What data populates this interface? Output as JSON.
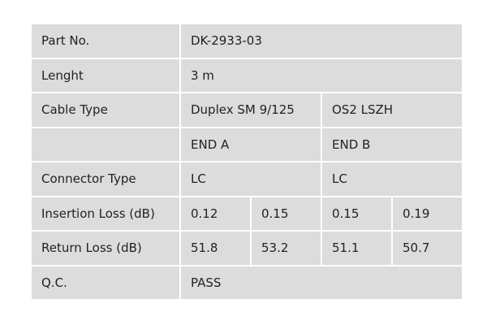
{
  "table": {
    "rows": [
      {
        "label": "Part No.",
        "cells": [
          "DK-2933-03"
        ]
      },
      {
        "label": "Lenght",
        "cells": [
          "3 m"
        ]
      },
      {
        "label": "Cable Type",
        "cells": [
          "Duplex SM 9/125",
          "OS2 LSZH"
        ]
      },
      {
        "cells": [
          "END A",
          "END B"
        ]
      },
      {
        "label": "Connector Type",
        "cells": [
          "LC",
          "LC"
        ]
      },
      {
        "label": "Insertion Loss (dB)",
        "cells": [
          "0.12",
          "0.15",
          "0.15",
          "0.19"
        ]
      },
      {
        "label": "Return Loss (dB)",
        "cells": [
          "51.8",
          "53.2",
          "51.1",
          "50.7"
        ]
      },
      {
        "label": "Q.C.",
        "cells": [
          "PASS"
        ]
      }
    ]
  }
}
